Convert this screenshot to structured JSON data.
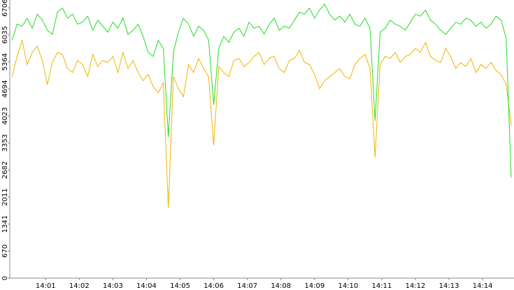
{
  "chart_data": {
    "type": "line",
    "x": [
      0,
      9,
      18,
      27,
      36,
      45,
      54,
      63,
      72,
      81,
      90,
      99,
      108,
      117,
      126,
      135,
      144,
      153,
      162,
      171,
      180,
      189,
      198,
      207,
      216,
      225,
      234,
      243,
      252,
      261,
      270,
      279,
      288,
      297,
      306,
      315,
      324,
      333,
      342,
      351,
      360,
      369,
      378,
      387,
      396,
      405,
      414,
      423,
      432,
      441,
      450,
      459,
      468,
      477,
      486,
      495,
      504,
      513,
      522,
      531,
      540,
      549,
      558,
      567,
      576,
      585,
      594,
      603,
      612,
      621,
      630,
      639,
      648,
      657,
      666,
      675,
      684,
      693,
      702,
      711,
      720,
      729,
      738,
      747,
      756,
      765,
      774,
      783,
      792,
      801,
      810,
      819,
      828,
      837,
      846,
      855,
      864,
      873,
      882,
      891
    ],
    "series": [
      {
        "color": "#f0b400",
        "values": [
          5000,
          5500,
          5900,
          5300,
          5600,
          5750,
          5400,
          4800,
          5350,
          5600,
          5550,
          5200,
          5100,
          5400,
          5300,
          5000,
          5550,
          5250,
          5400,
          5350,
          5500,
          5100,
          5600,
          5200,
          5400,
          5100,
          4900,
          5050,
          4750,
          4600,
          4850,
          1750,
          5000,
          4700,
          4500,
          5300,
          5100,
          5450,
          5200,
          5000,
          3300,
          5250,
          5100,
          5000,
          5400,
          5450,
          5250,
          5350,
          5500,
          5600,
          5300,
          5450,
          5500,
          5200,
          5100,
          5400,
          5450,
          5650,
          5350,
          5300,
          5050,
          4700,
          4900,
          5000,
          5100,
          5200,
          5000,
          4950,
          5300,
          5450,
          5550,
          5200,
          3000,
          5300,
          5500,
          5450,
          5600,
          5350,
          5500,
          5550,
          5700,
          5600,
          5850,
          5500,
          5400,
          5350,
          5700,
          5500,
          5200,
          5350,
          5250,
          5450,
          5100,
          5300,
          5200,
          5350,
          5150,
          5050,
          4800,
          3800
        ]
      },
      {
        "color": "#22dd22",
        "values": [
          5900,
          6300,
          6250,
          6450,
          6200,
          6550,
          6400,
          6150,
          6050,
          6600,
          6700,
          6450,
          6550,
          6300,
          6350,
          6500,
          6150,
          6400,
          6250,
          6100,
          6350,
          6200,
          6450,
          6050,
          6150,
          6300,
          6000,
          5600,
          5500,
          5900,
          5700,
          3500,
          5600,
          6100,
          6450,
          6300,
          6000,
          6250,
          6150,
          5900,
          4300,
          5700,
          6000,
          5850,
          6100,
          6200,
          6000,
          6350,
          6200,
          6250,
          6050,
          6300,
          6450,
          6150,
          6250,
          6200,
          6400,
          6600,
          6550,
          6700,
          6450,
          6650,
          6800,
          6550,
          6400,
          6500,
          6350,
          6550,
          6300,
          6250,
          6450,
          6200,
          3900,
          6100,
          6200,
          6400,
          6300,
          6250,
          6150,
          6350,
          6550,
          6500,
          6650,
          6400,
          6300,
          6150,
          6050,
          6200,
          6350,
          6300,
          6450,
          6400,
          6250,
          6350,
          6200,
          6300,
          6500,
          6400,
          5950,
          2500
        ]
      }
    ],
    "xlim": [
      -4,
      896
    ],
    "xticks": [
      {
        "value": 60,
        "label": "14:01"
      },
      {
        "value": 120,
        "label": "14:02"
      },
      {
        "value": 180,
        "label": "14:03"
      },
      {
        "value": 240,
        "label": "14:04"
      },
      {
        "value": 300,
        "label": "14:05"
      },
      {
        "value": 360,
        "label": "14:06"
      },
      {
        "value": 420,
        "label": "14:07"
      },
      {
        "value": 480,
        "label": "14:08"
      },
      {
        "value": 540,
        "label": "14:09"
      },
      {
        "value": 600,
        "label": "14:10"
      },
      {
        "value": 660,
        "label": "14:11"
      },
      {
        "value": 720,
        "label": "14:12"
      },
      {
        "value": 780,
        "label": "14:13"
      },
      {
        "value": 840,
        "label": "14:14"
      }
    ],
    "ylim": [
      0,
      6900
    ],
    "yticks": [
      0,
      670,
      1341,
      2011,
      2682,
      3353,
      4023,
      4694,
      5364,
      6035,
      6706
    ]
  }
}
